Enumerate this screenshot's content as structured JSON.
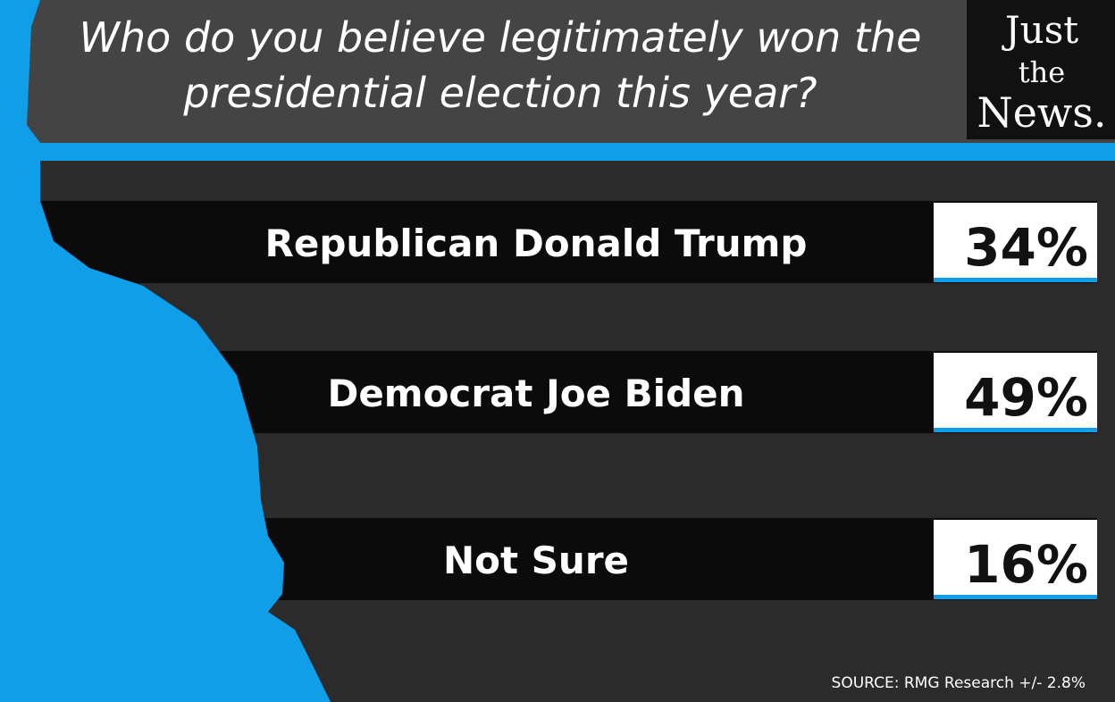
{
  "header": {
    "title_lines": [
      "Who do you believe legitimately won the",
      "presidential election this year?"
    ]
  },
  "logo": {
    "lines": [
      "Just",
      "the",
      "News."
    ]
  },
  "rows": [
    {
      "label": "Republican Donald Trump",
      "value": "34%"
    },
    {
      "label": "Democrat Joe Biden",
      "value": "49%"
    },
    {
      "label": "Not Sure",
      "value": "16%"
    }
  ],
  "source": "SOURCE: RMG Research +/- 2.8%"
}
